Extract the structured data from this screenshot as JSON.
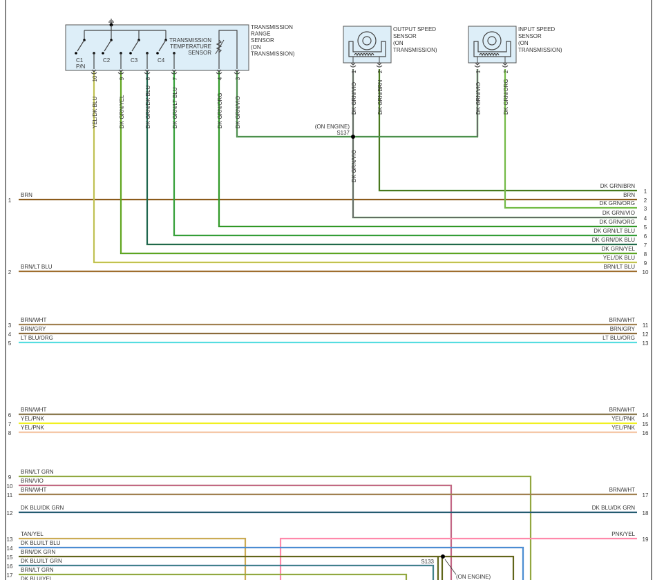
{
  "components": {
    "trs": {
      "title": [
        "TRANSMISSION",
        "RANGE",
        "SENSOR",
        "(ON",
        "TRANSMISSION)"
      ],
      "temp_sensor": [
        "TRANSMISSION",
        "TEMPERATURE",
        "SENSOR"
      ],
      "switches": [
        "C1",
        "C2",
        "C3",
        "C4"
      ],
      "switch_sub": "P/N",
      "pins": [
        {
          "pin": "10",
          "label": "YEL/DK BLU"
        },
        {
          "pin": "9",
          "label": "DK GRN/YEL"
        },
        {
          "pin": "8",
          "label": "DK GRN/DK BLU"
        },
        {
          "pin": "7",
          "label": "DK GRN/LT BLU"
        },
        {
          "pin": "4",
          "label": "DK GRN/ORG"
        },
        {
          "pin": "3",
          "label": "DK GRN/VIO"
        }
      ]
    },
    "oss": {
      "title": [
        "OUTPUT SPEED",
        "SENSOR",
        "(ON",
        "TRANSMISSION)"
      ],
      "pins": [
        {
          "pin": "1",
          "label": "DK GRN/VIO"
        },
        {
          "pin": "2",
          "label": "DK GRN/BRN"
        }
      ]
    },
    "iss": {
      "title": [
        "INPUT SPEED",
        "SENSOR",
        "(ON",
        "TRANSMISSION)"
      ],
      "pins": [
        {
          "pin": "1",
          "label": "DK GRN/VIO"
        },
        {
          "pin": "2",
          "label": "DK GRN/ORG"
        }
      ]
    },
    "s137": {
      "name": "S137",
      "location": "(ON ENGINE)",
      "below_label": "DK GRN/VIO"
    },
    "s133": {
      "name": "S133",
      "location": "(ON ENGINE)"
    }
  },
  "wires": [
    {
      "left_pin": "",
      "left_label": "",
      "right_pin": "1",
      "right_label": "DK GRN/BRN",
      "colors": [
        "#1f8a1f",
        "#8b5a1a"
      ]
    },
    {
      "left_pin": "1",
      "left_label": "BRN",
      "right_pin": "2",
      "right_label": "BRN",
      "colors": [
        "#8b5a1a"
      ]
    },
    {
      "left_pin": "",
      "left_label": "",
      "right_pin": "3",
      "right_label": "DK GRN/ORG",
      "colors": [
        "#6cc24a",
        "#7fb040"
      ]
    },
    {
      "left_pin": "",
      "left_label": "",
      "right_pin": "4",
      "right_label": "DK GRN/VIO",
      "colors": [
        "#1f8a1f",
        "#d040d0"
      ]
    },
    {
      "left_pin": "",
      "left_label": "",
      "right_pin": "5",
      "right_label": "DK GRN/ORG",
      "colors": [
        "#1f8a1f",
        "#4caf30"
      ]
    },
    {
      "left_pin": "",
      "left_label": "",
      "right_pin": "6",
      "right_label": "DK GRN/LT BLU",
      "colors": [
        "#1f8a1f",
        "#55c060"
      ]
    },
    {
      "left_pin": "",
      "left_label": "",
      "right_pin": "7",
      "right_label": "DK GRN/DK BLU",
      "colors": [
        "#1a7a1a",
        "#2a4aa0"
      ]
    },
    {
      "left_pin": "",
      "left_label": "",
      "right_pin": "8",
      "right_label": "DK GRN/YEL",
      "colors": [
        "#1f8a1f",
        "#c8d020"
      ]
    },
    {
      "left_pin": "",
      "left_label": "",
      "right_pin": "9",
      "right_label": "YEL/DK BLU",
      "colors": [
        "#e8e020",
        "#8090a0"
      ]
    },
    {
      "left_pin": "2",
      "left_label": "BRN/LT BLU",
      "right_pin": "10",
      "right_label": "BRN/LT BLU",
      "colors": [
        "#8b5a1a",
        "#c09050"
      ]
    },
    {
      "left_pin": "3",
      "left_label": "BRN/WHT",
      "right_pin": "11",
      "right_label": "BRN/WHT",
      "colors": [
        "#a08050"
      ]
    },
    {
      "left_pin": "4",
      "left_label": "BRN/GRY",
      "right_pin": "12",
      "right_label": "BRN/GRY",
      "colors": [
        "#8b6a3a"
      ]
    },
    {
      "left_pin": "5",
      "left_label": "LT BLU/ORG",
      "right_pin": "13",
      "right_label": "LT BLU/ORG",
      "colors": [
        "#55dde0"
      ]
    },
    {
      "left_pin": "6",
      "left_label": "BRN/WHT",
      "right_pin": "14",
      "right_label": "BRN/WHT",
      "colors": [
        "#8b7a50"
      ]
    },
    {
      "left_pin": "7",
      "left_label": "YEL/PNK",
      "right_pin": "15",
      "right_label": "YEL/PNK",
      "colors": [
        "#f0f020"
      ]
    },
    {
      "left_pin": "8",
      "left_label": "YEL/PNK",
      "right_pin": "16",
      "right_label": "YEL/PNK",
      "colors": [
        "#f5c8a8"
      ]
    },
    {
      "left_pin": "9",
      "left_label": "BRN/LT GRN",
      "right_pin": "",
      "right_label": "",
      "colors": [
        "#8bbf40",
        "#a08040"
      ]
    },
    {
      "left_pin": "10",
      "left_label": "BRN/VIO",
      "right_pin": "",
      "right_label": "",
      "colors": [
        "#b08060",
        "#e040c0"
      ]
    },
    {
      "left_pin": "11",
      "left_label": "BRN/WHT",
      "right_pin": "17",
      "right_label": "BRN/WHT",
      "colors": [
        "#a08050"
      ]
    },
    {
      "left_pin": "12",
      "left_label": "DK BLU/DK GRN",
      "right_pin": "18",
      "right_label": "DK BLU/DK GRN",
      "colors": [
        "#2a4aa0",
        "#1a7a1a"
      ]
    },
    {
      "left_pin": "13",
      "left_label": "TAN/YEL",
      "right_pin": "",
      "right_label": "",
      "colors": [
        "#c8a860",
        "#d0b040"
      ]
    },
    {
      "left_pin": "",
      "left_label": "",
      "right_pin": "19",
      "right_label": "PNK/YEL",
      "colors": [
        "#ff88aa"
      ]
    },
    {
      "left_pin": "14",
      "left_label": "DK BLU/LT BLU",
      "right_pin": "",
      "right_label": "",
      "colors": [
        "#3a70c0",
        "#66bbee"
      ]
    },
    {
      "left_pin": "15",
      "left_label": "BRN/DK GRN",
      "right_pin": "",
      "right_label": "",
      "colors": [
        "#8b5a1a",
        "#1a7a1a"
      ]
    },
    {
      "left_pin": "16",
      "left_label": "DK BLU/LT GRN",
      "right_pin": "",
      "right_label": "",
      "colors": [
        "#2a4aa0",
        "#66dd66"
      ]
    },
    {
      "left_pin": "17",
      "left_label": "BRN/LT GRN",
      "right_pin": "",
      "right_label": "",
      "colors": [
        "#8bbf40",
        "#a08040"
      ]
    },
    {
      "left_pin": "18",
      "left_label": "DK BLU/YEL",
      "right_pin": "",
      "right_label": "",
      "colors": [
        "#2a4aa0",
        "#e8e020"
      ]
    }
  ],
  "trs_jumper_colors": [
    "#1f8a1f",
    "#999999"
  ]
}
